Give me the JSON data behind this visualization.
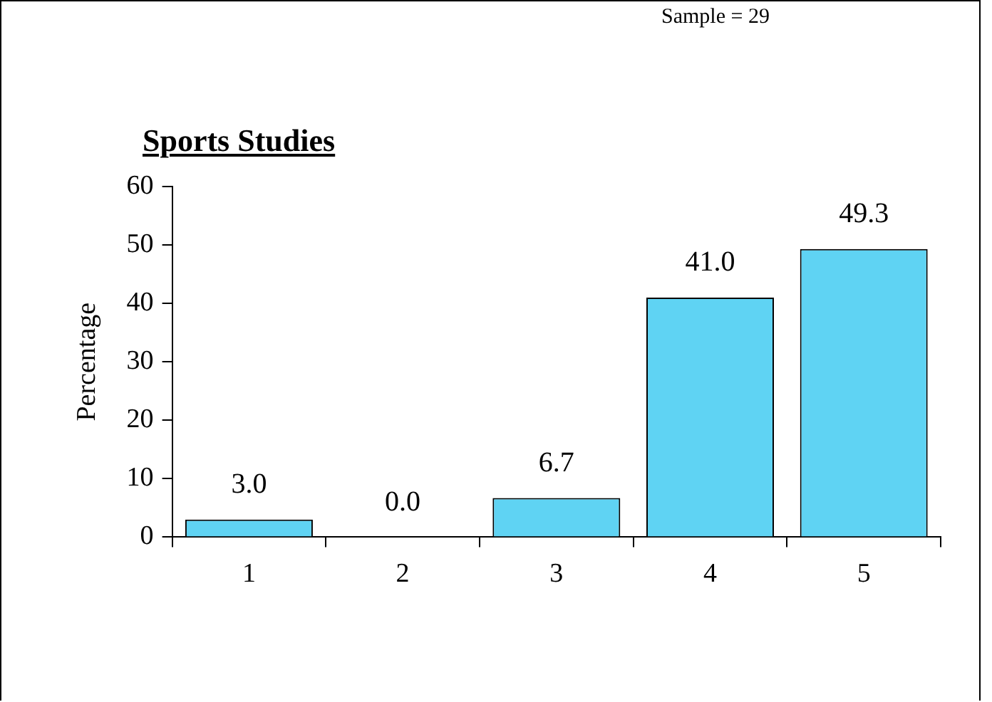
{
  "chart_data": {
    "type": "bar",
    "title": "Sports Studies",
    "ylabel": "Percentage",
    "annotations": [
      "Sample = 29"
    ],
    "categories": [
      "1",
      "2",
      "3",
      "4",
      "5"
    ],
    "values": [
      3.0,
      0.0,
      6.7,
      41.0,
      49.3
    ],
    "value_labels": [
      "3.0",
      "0.0",
      "6.7",
      "41.0",
      "49.3"
    ],
    "color": "#5fd3f3",
    "ylim": [
      0,
      60
    ],
    "yticks": [
      0,
      10,
      20,
      30,
      40,
      50,
      60
    ],
    "grid": false,
    "legend": false
  }
}
